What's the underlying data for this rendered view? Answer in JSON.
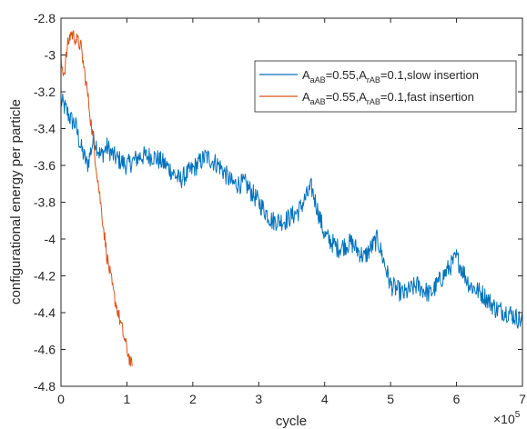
{
  "chart_data": {
    "type": "line",
    "xlabel": "cycle",
    "ylabel": "configurational energy per particle",
    "x_multiplier": {
      "base": "×10",
      "exponent": "5"
    },
    "xlim": [
      0,
      7
    ],
    "ylim": [
      -4.8,
      -2.8
    ],
    "x_ticks": [
      "0",
      "1",
      "2",
      "3",
      "4",
      "5",
      "6",
      "7"
    ],
    "y_ticks": [
      "-2.8",
      "-3",
      "-3.2",
      "-3.4",
      "-3.6",
      "-3.8",
      "-4",
      "-4.2",
      "-4.4",
      "-4.6",
      "-4.8"
    ],
    "grid": false,
    "legend_position": "top-right",
    "series": [
      {
        "name": "A_aAB=0.55,A_rAB=0.1,slow insertion",
        "legend": {
          "A": "A",
          "sub1": "aAB",
          "mid": "=0.55,A",
          "sub2": "rAB",
          "tail": "=0.1,slow insertion"
        },
        "color": "#0072BD",
        "noise_amplitude": 0.055,
        "x": [
          0,
          0.08,
          0.15,
          0.22,
          0.3,
          0.4,
          0.5,
          0.6,
          0.7,
          0.8,
          1.0,
          1.2,
          1.4,
          1.6,
          1.8,
          2.0,
          2.2,
          2.4,
          2.6,
          2.8,
          3.0,
          3.2,
          3.4,
          3.6,
          3.8,
          4.0,
          4.2,
          4.4,
          4.6,
          4.8,
          5.0,
          5.2,
          5.4,
          5.6,
          5.8,
          6.0,
          6.2,
          6.4,
          6.6,
          6.8,
          7.0
        ],
        "y": [
          -3.25,
          -3.3,
          -3.35,
          -3.38,
          -3.5,
          -3.6,
          -3.45,
          -3.55,
          -3.5,
          -3.55,
          -3.6,
          -3.55,
          -3.55,
          -3.6,
          -3.68,
          -3.62,
          -3.55,
          -3.6,
          -3.7,
          -3.7,
          -3.8,
          -3.9,
          -3.9,
          -3.85,
          -3.72,
          -3.98,
          -4.05,
          -4.02,
          -4.1,
          -4.0,
          -4.25,
          -4.3,
          -4.25,
          -4.3,
          -4.2,
          -4.1,
          -4.25,
          -4.3,
          -4.38,
          -4.4,
          -4.45
        ]
      },
      {
        "name": "A_aAB=0.55,A_rAB=0.1,fast insertion",
        "legend": {
          "A": "A",
          "sub1": "aAB",
          "mid": "=0.55,A",
          "sub2": "rAB",
          "tail": "=0.1,fast insertion"
        },
        "color": "#D95319",
        "noise_amplitude": 0.04,
        "x": [
          0,
          0.05,
          0.1,
          0.15,
          0.2,
          0.3,
          0.4,
          0.5,
          0.6,
          0.7,
          0.8,
          0.9,
          1.0,
          1.08
        ],
        "y": [
          -3.05,
          -3.1,
          -2.95,
          -2.88,
          -2.9,
          -2.95,
          -3.2,
          -3.5,
          -3.8,
          -4.1,
          -4.3,
          -4.45,
          -4.6,
          -4.7
        ]
      }
    ]
  }
}
